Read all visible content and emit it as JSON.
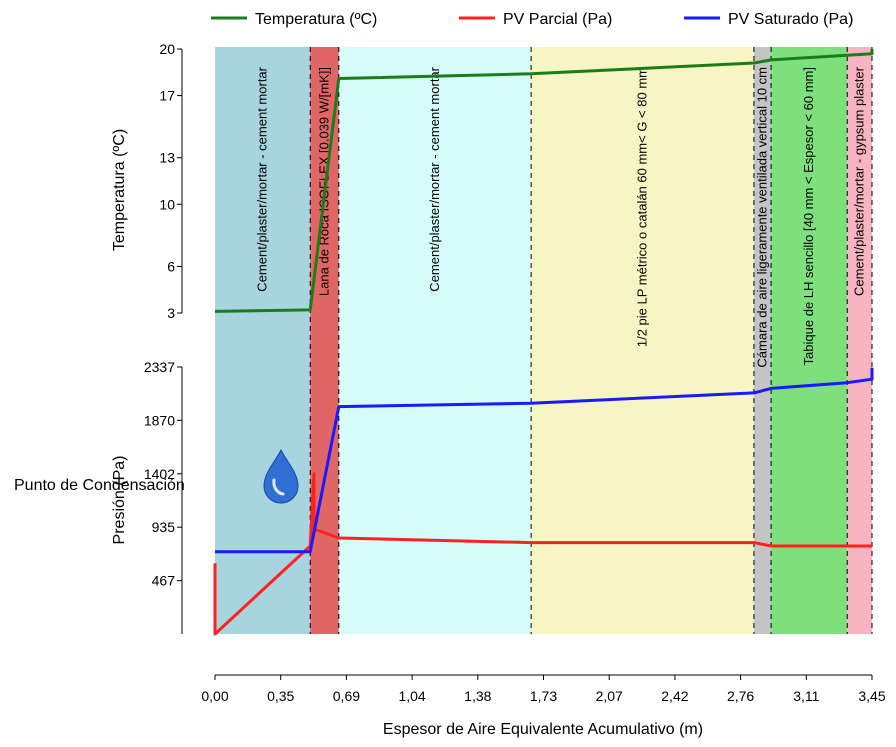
{
  "chart_data": {
    "type": "line",
    "legend": [
      {
        "name": "Temperatura (ºC)",
        "color": "#1a7d1a"
      },
      {
        "name": "PV Parcial (Pa)",
        "color": "#ff2020"
      },
      {
        "name": "PV Saturado (Pa)",
        "color": "#1a1aff"
      }
    ],
    "legend_placement": "top",
    "xlabel": "Espesor de Aire Equivalente Acumulativo (m)",
    "x_ticks": [
      "0,00",
      "0,35",
      "0,69",
      "1,04",
      "1,38",
      "1,73",
      "2,07",
      "2,42",
      "2,76",
      "3,11",
      "3,45"
    ],
    "xlim": [
      0,
      3.45
    ],
    "temperature_axis": {
      "label": "Temperatura (ºC)",
      "ticks": [
        "3",
        "6",
        "10",
        "13",
        "17",
        "20"
      ],
      "ylim": [
        3,
        20
      ]
    },
    "pressure_axis": {
      "label": "Presión (Pa)",
      "ticks": [
        "467",
        "935",
        "1402",
        "1870",
        "2337"
      ],
      "ylim": [
        0,
        2337
      ]
    },
    "layers": [
      {
        "label": "Cement/plaster/mortar - cement  mortar",
        "x0": 0.0,
        "x1": 0.5,
        "color": "#a8d4e0"
      },
      {
        "label": "Lana de Roca ISOFLEX [0.039 W/[mK]]",
        "x0": 0.5,
        "x1": 0.65,
        "color": "#e06666"
      },
      {
        "label": "Cement/plaster/mortar - cement  mortar",
        "x0": 0.65,
        "x1": 1.66,
        "color": "#d6fbfb"
      },
      {
        "label": "1/2 pie LP métrico o catalán 60  mm< G  < 80  mm",
        "x0": 1.66,
        "x1": 2.83,
        "color": "#f8f5c4"
      },
      {
        "label": "Cámara de aire ligeramente ventilada vertical 10 cm",
        "x0": 2.83,
        "x1": 2.92,
        "color": "#c4c4c4"
      },
      {
        "label": "Tabique de LH  sencillo [40 mm < Espesor < 60 mm]",
        "x0": 2.92,
        "x1": 3.32,
        "color": "#7de07d"
      },
      {
        "label": "Cement/plaster/mortar - gypsum  plaster",
        "x0": 3.32,
        "x1": 3.45,
        "color": "#f7b3bf"
      }
    ],
    "series": [
      {
        "name": "Temperatura (ºC)",
        "axis": "temperature",
        "points": [
          [
            0,
            3.1
          ],
          [
            0.5,
            3.2
          ],
          [
            0.65,
            18.1
          ],
          [
            1.66,
            18.4
          ],
          [
            2.83,
            19.1
          ],
          [
            2.92,
            19.3
          ],
          [
            3.32,
            19.6
          ],
          [
            3.45,
            19.7
          ],
          [
            3.45,
            20
          ]
        ]
      },
      {
        "name": "PV Parcial (Pa)",
        "axis": "pressure",
        "points": [
          [
            0,
            620
          ],
          [
            0,
            0
          ],
          [
            0.5,
            770
          ],
          [
            0.52,
            1402
          ],
          [
            0.52,
            920
          ],
          [
            0.65,
            840
          ],
          [
            1.66,
            800
          ],
          [
            2.83,
            800
          ],
          [
            2.92,
            770
          ],
          [
            3.45,
            770
          ]
        ]
      },
      {
        "name": "PV Saturado (Pa)",
        "axis": "pressure",
        "points": [
          [
            0,
            720
          ],
          [
            0.5,
            720
          ],
          [
            0.65,
            1990
          ],
          [
            1.66,
            2020
          ],
          [
            2.83,
            2110
          ],
          [
            2.92,
            2150
          ],
          [
            3.32,
            2200
          ],
          [
            3.45,
            2230
          ],
          [
            3.45,
            2330
          ]
        ]
      }
    ],
    "annotation": "Punto de Condensación"
  }
}
